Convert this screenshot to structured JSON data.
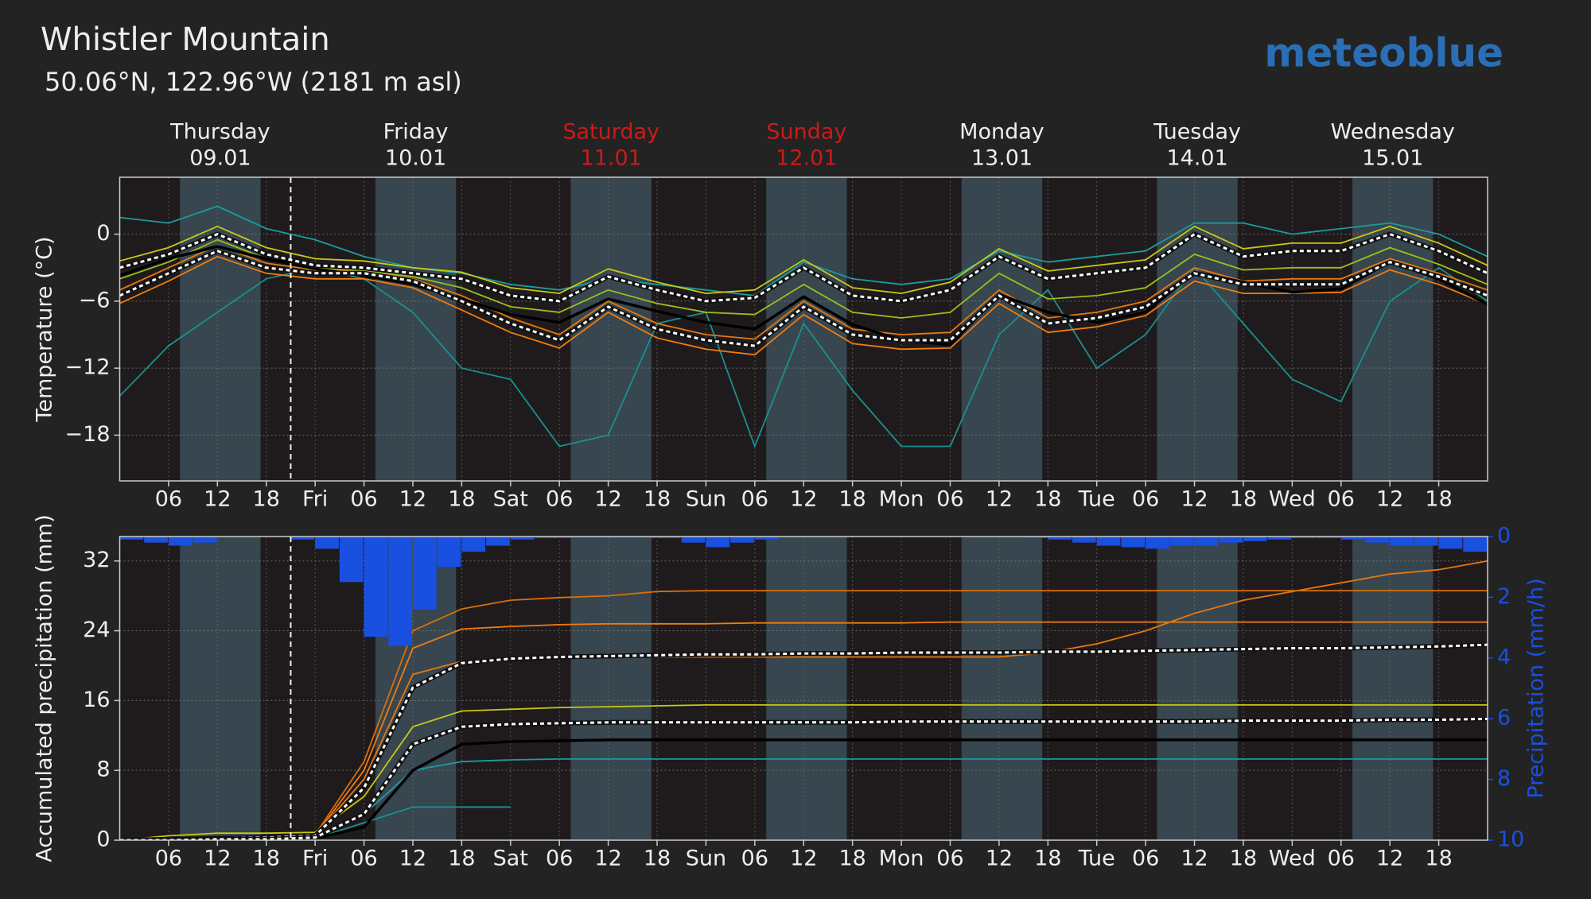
{
  "header": {
    "title": "Whistler Mountain",
    "subtitle": "50.06°N, 122.96°W (2181 m asl)",
    "logo": "meteoblue",
    "day_headers": [
      {
        "day": "Thursday",
        "date": "09.01",
        "color": "#eeeeee"
      },
      {
        "day": "Friday",
        "date": "10.01",
        "color": "#eeeeee"
      },
      {
        "day": "Saturday",
        "date": "11.01",
        "color": "#cc1a1a"
      },
      {
        "day": "Sunday",
        "date": "12.01",
        "color": "#cc1a1a"
      },
      {
        "day": "Monday",
        "date": "13.01",
        "color": "#eeeeee"
      },
      {
        "day": "Tuesday",
        "date": "14.01",
        "color": "#eeeeee"
      },
      {
        "day": "Wednesday",
        "date": "15.01",
        "color": "#eeeeee"
      }
    ]
  },
  "chart_data": [
    {
      "type": "line",
      "y_label": "Temperature (°C)",
      "grid": true,
      "now": 21,
      "xlim": [
        0,
        168
      ],
      "ylim": [
        -22.1,
        5.1
      ],
      "xticks": [
        {
          "value": 6,
          "label": "06"
        },
        {
          "value": 12,
          "label": "12"
        },
        {
          "value": 18,
          "label": "18"
        },
        {
          "value": 24,
          "label": "Fri"
        },
        {
          "value": 30,
          "label": "06"
        },
        {
          "value": 36,
          "label": "12"
        },
        {
          "value": 42,
          "label": "18"
        },
        {
          "value": 48,
          "label": "Sat"
        },
        {
          "value": 54,
          "label": "06"
        },
        {
          "value": 60,
          "label": "12"
        },
        {
          "value": 66,
          "label": "18"
        },
        {
          "value": 72,
          "label": "Sun"
        },
        {
          "value": 78,
          "label": "06"
        },
        {
          "value": 84,
          "label": "12"
        },
        {
          "value": 90,
          "label": "18"
        },
        {
          "value": 96,
          "label": "Mon"
        },
        {
          "value": 102,
          "label": "06"
        },
        {
          "value": 108,
          "label": "12"
        },
        {
          "value": 114,
          "label": "18"
        },
        {
          "value": 120,
          "label": "Tue"
        },
        {
          "value": 126,
          "label": "06"
        },
        {
          "value": 132,
          "label": "12"
        },
        {
          "value": 138,
          "label": "18"
        },
        {
          "value": 144,
          "label": "Wed"
        },
        {
          "value": 150,
          "label": "06"
        },
        {
          "value": 156,
          "label": "12"
        },
        {
          "value": 162,
          "label": "18"
        }
      ],
      "yticks": [
        0,
        {
          "value": -6,
          "label": "−6"
        },
        {
          "value": -12,
          "label": "−12"
        },
        {
          "value": -18,
          "label": "−18"
        }
      ],
      "daylight": [
        [
          7.4,
          17.3
        ],
        [
          31.4,
          41.3
        ],
        [
          55.4,
          65.3
        ],
        [
          79.4,
          89.3
        ],
        [
          103.4,
          113.3
        ],
        [
          127.4,
          137.3
        ],
        [
          151.4,
          161.3
        ]
      ],
      "x": [
        0,
        6,
        12,
        18,
        24,
        30,
        36,
        42,
        48,
        54,
        60,
        66,
        72,
        78,
        84,
        90,
        96,
        102,
        108,
        114,
        120,
        126,
        132,
        138,
        144,
        150,
        156,
        162,
        168
      ],
      "series": [
        {
          "color": "#1a9090",
          "values": [
            -14.5,
            -10,
            -7,
            -4,
            -3,
            -4,
            -7,
            -12,
            -13,
            -19,
            -18,
            -8,
            -7,
            -19,
            -8,
            -14,
            -19,
            -19,
            -9,
            -5,
            -12,
            -9,
            -3,
            -8,
            -13,
            -15,
            -6,
            -3,
            -6
          ]
        },
        {
          "color": "#1a9ca0",
          "values": [
            1.5,
            1.0,
            2.5,
            0.5,
            -0.5,
            -2.0,
            -3.0,
            -3.5,
            -4.5,
            -5.0,
            -4.0,
            -4.5,
            -5.0,
            -5.5,
            -2.5,
            -4.0,
            -4.5,
            -4.0,
            -1.5,
            -2.5,
            -2.0,
            -1.5,
            1.0,
            1.0,
            0.0,
            0.5,
            1.0,
            0.0,
            -2.0
          ]
        },
        {
          "color": "#f07c10",
          "values": [
            -6.2,
            -4.2,
            -2.0,
            -3.5,
            -4.0,
            -4.0,
            -4.8,
            -6.8,
            -8.8,
            -10.2,
            -7.0,
            -9.3,
            -10.3,
            -10.8,
            -7.2,
            -9.8,
            -10.3,
            -10.2,
            -6.2,
            -8.8,
            -8.3,
            -7.3,
            -4.2,
            -5.3,
            -5.3,
            -5.2,
            -3.2,
            -4.5,
            -6.3
          ]
        },
        {
          "color": "#e8780c",
          "values": [
            -5.0,
            -3.0,
            -1.0,
            -2.6,
            -3.2,
            -3.3,
            -4.0,
            -5.5,
            -7.5,
            -9.0,
            -6.0,
            -8.0,
            -9.0,
            -9.4,
            -6.0,
            -8.5,
            -9.0,
            -8.8,
            -5.0,
            -7.5,
            -7.0,
            -6.0,
            -3.0,
            -4.2,
            -4.0,
            -4.0,
            -2.2,
            -3.5,
            -5.0
          ]
        },
        {
          "color": "#c8c814",
          "values": [
            -2.4,
            -1.2,
            0.7,
            -1.2,
            -2.2,
            -2.4,
            -3.0,
            -3.4,
            -4.8,
            -5.3,
            -3.1,
            -4.3,
            -5.3,
            -5.0,
            -2.3,
            -4.8,
            -5.3,
            -4.3,
            -1.3,
            -3.3,
            -2.8,
            -2.3,
            0.7,
            -1.3,
            -0.8,
            -0.8,
            0.7,
            -0.8,
            -2.8
          ]
        },
        {
          "color": "#9cbf1c",
          "values": [
            -4.0,
            -2.5,
            -0.5,
            -2.2,
            -3.0,
            -3.3,
            -3.8,
            -4.8,
            -6.5,
            -7.0,
            -5.0,
            -6.2,
            -7.0,
            -7.2,
            -4.5,
            -7.0,
            -7.5,
            -7.0,
            -3.5,
            -5.8,
            -5.5,
            -4.8,
            -1.8,
            -3.2,
            -3.0,
            -3.0,
            -1.2,
            -2.7,
            -4.5
          ]
        },
        {
          "color": "#000000",
          "values": [
            -3.7,
            -2.2,
            -1.1,
            -2.2,
            -3.1,
            -3.7,
            -4.5,
            -5.8,
            -7.2,
            -7.9,
            -5.8,
            -6.9,
            -7.9,
            -8.5,
            -5.6,
            -8.1,
            -9.5,
            -9.9,
            -5.4,
            -7.0,
            -7.9,
            -7.0,
            -3.4,
            -4.3,
            -5.2,
            -4.9,
            -2.5,
            -4.0,
            -6.3
          ]
        },
        {
          "color": "#ffffff",
          "style": "dashed",
          "values": [
            -3.0,
            -1.8,
            0.0,
            -1.8,
            -2.8,
            -3.0,
            -3.5,
            -4.0,
            -5.5,
            -6.0,
            -3.8,
            -5.0,
            -6.0,
            -5.7,
            -3.0,
            -5.5,
            -6.0,
            -5.0,
            -2.0,
            -4.0,
            -3.5,
            -3.0,
            0.0,
            -2.0,
            -1.5,
            -1.5,
            0.0,
            -1.5,
            -3.5
          ]
        },
        {
          "color": "#ffffff",
          "style": "dashed",
          "values": [
            -5.5,
            -3.5,
            -1.5,
            -3.0,
            -3.5,
            -3.5,
            -4.2,
            -6.0,
            -8.0,
            -9.5,
            -6.5,
            -8.5,
            -9.5,
            -10.0,
            -6.5,
            -9.0,
            -9.5,
            -9.5,
            -5.5,
            -8.0,
            -7.5,
            -6.5,
            -3.5,
            -4.5,
            -4.5,
            -4.5,
            -2.5,
            -3.8,
            -5.5
          ]
        }
      ]
    },
    {
      "type": "line",
      "y_label": "Accumulated precipitation (mm)",
      "y2_label": "Precipitation (mm/h)",
      "y2_color": "#1a50e0",
      "grid": true,
      "now": 21,
      "xlim": [
        0,
        168
      ],
      "ylim": [
        0,
        34.8
      ],
      "y2lim": [
        10,
        0
      ],
      "xticks": [
        {
          "value": 6,
          "label": "06"
        },
        {
          "value": 12,
          "label": "12"
        },
        {
          "value": 18,
          "label": "18"
        },
        {
          "value": 24,
          "label": "Fri"
        },
        {
          "value": 30,
          "label": "06"
        },
        {
          "value": 36,
          "label": "12"
        },
        {
          "value": 42,
          "label": "18"
        },
        {
          "value": 48,
          "label": "Sat"
        },
        {
          "value": 54,
          "label": "06"
        },
        {
          "value": 60,
          "label": "12"
        },
        {
          "value": 66,
          "label": "18"
        },
        {
          "value": 72,
          "label": "Sun"
        },
        {
          "value": 78,
          "label": "06"
        },
        {
          "value": 84,
          "label": "12"
        },
        {
          "value": 90,
          "label": "18"
        },
        {
          "value": 96,
          "label": "Mon"
        },
        {
          "value": 102,
          "label": "06"
        },
        {
          "value": 108,
          "label": "12"
        },
        {
          "value": 114,
          "label": "18"
        },
        {
          "value": 120,
          "label": "Tue"
        },
        {
          "value": 126,
          "label": "06"
        },
        {
          "value": 132,
          "label": "12"
        },
        {
          "value": 138,
          "label": "18"
        },
        {
          "value": 144,
          "label": "Wed"
        },
        {
          "value": 150,
          "label": "06"
        },
        {
          "value": 156,
          "label": "12"
        },
        {
          "value": 162,
          "label": "18"
        }
      ],
      "yticks": [
        0,
        8,
        16,
        24,
        32
      ],
      "y2ticks": [
        0,
        2,
        4,
        6,
        8,
        10
      ],
      "daylight": [
        [
          7.4,
          17.3
        ],
        [
          31.4,
          41.3
        ],
        [
          55.4,
          65.3
        ],
        [
          79.4,
          89.3
        ],
        [
          103.4,
          113.3
        ],
        [
          127.4,
          137.3
        ],
        [
          151.4,
          161.3
        ]
      ],
      "x": [
        0,
        6,
        12,
        18,
        24,
        30,
        36,
        42,
        48,
        54,
        60,
        66,
        72,
        78,
        84,
        90,
        96,
        102,
        108,
        114,
        120,
        126,
        132,
        138,
        144,
        150,
        156,
        162,
        168
      ],
      "series": [
        {
          "color": "#1a9090",
          "values": [
            0,
            0,
            0,
            0,
            0.2,
            2,
            3.8,
            3.8,
            3.8,
            null,
            null,
            null,
            null,
            null,
            null,
            null,
            null,
            null,
            null,
            null,
            null,
            null,
            null,
            null,
            null,
            null,
            null,
            null,
            null
          ]
        },
        {
          "color": "#1a9ca0",
          "values": [
            0,
            0,
            0,
            0,
            0.3,
            3,
            8,
            9,
            9.2,
            9.3,
            9.3,
            9.3,
            9.3,
            9.3,
            9.3,
            9.3,
            9.3,
            9.3,
            9.3,
            9.3,
            9.3,
            9.3,
            9.3,
            9.3,
            9.3,
            9.3,
            9.3,
            9.3,
            9.3
          ]
        },
        {
          "color": "#c8c814",
          "values": [
            0,
            0.5,
            0.8,
            0.8,
            0.9,
            5,
            13,
            14.8,
            15,
            15.2,
            15.3,
            15.4,
            15.5,
            15.5,
            15.5,
            15.5,
            15.5,
            15.5,
            15.5,
            15.5,
            15.5,
            15.5,
            15.5,
            15.5,
            15.5,
            15.5,
            15.5,
            15.5,
            15.5
          ]
        },
        {
          "color": "#f07c10",
          "values": [
            0,
            0,
            0.2,
            0.3,
            0.5,
            8,
            22,
            24.2,
            24.5,
            24.7,
            24.8,
            24.8,
            24.8,
            24.9,
            24.9,
            24.9,
            24.9,
            25,
            25,
            25,
            25,
            25,
            25,
            25,
            25,
            25,
            25,
            25,
            25
          ]
        },
        {
          "color": "#e8780c",
          "values": [
            0,
            0,
            0.1,
            0.2,
            0.5,
            7,
            19,
            20.5,
            20.8,
            21,
            21,
            21,
            21,
            21,
            21,
            21,
            21,
            21,
            21,
            21.5,
            22.5,
            24,
            26,
            27.5,
            28.5,
            29.5,
            30.5,
            31,
            32
          ]
        },
        {
          "color": "#d9700c",
          "values": [
            0,
            0,
            0.1,
            0.2,
            0.6,
            9,
            24,
            26.5,
            27.5,
            27.8,
            28,
            28.5,
            28.6,
            28.6,
            28.6,
            28.6,
            28.6,
            28.6,
            28.6,
            28.6,
            28.6,
            28.6,
            28.6,
            28.6,
            28.6,
            28.6,
            28.6,
            28.6,
            28.6
          ]
        },
        {
          "color": "#000000",
          "values": [
            0,
            0,
            0,
            0,
            0.2,
            1.5,
            8,
            11,
            11.3,
            11.4,
            11.5,
            11.5,
            11.5,
            11.5,
            11.5,
            11.5,
            11.5,
            11.5,
            11.5,
            11.5,
            11.5,
            11.5,
            11.5,
            11.5,
            11.5,
            11.5,
            11.5,
            11.5,
            11.5
          ]
        },
        {
          "color": "#ffffff",
          "style": "dashed",
          "values": [
            0,
            0.1,
            0.2,
            0.3,
            0.5,
            6,
            17.5,
            20.3,
            20.8,
            21,
            21.1,
            21.2,
            21.3,
            21.3,
            21.4,
            21.4,
            21.5,
            21.5,
            21.5,
            21.6,
            21.6,
            21.7,
            21.8,
            21.9,
            22,
            22,
            22.1,
            22.2,
            22.4
          ]
        },
        {
          "color": "#ffffff",
          "style": "dashed",
          "values": [
            0,
            0,
            0.1,
            0.1,
            0.3,
            3,
            11,
            13,
            13.3,
            13.4,
            13.5,
            13.5,
            13.5,
            13.5,
            13.5,
            13.5,
            13.6,
            13.6,
            13.6,
            13.6,
            13.6,
            13.6,
            13.6,
            13.7,
            13.7,
            13.7,
            13.8,
            13.8,
            13.9
          ]
        },
        {
          "type": "bar",
          "axis": "y2",
          "width": 3,
          "color": "#1a50e0",
          "x": [
            0,
            3,
            6,
            9,
            12,
            15,
            18,
            21,
            24,
            27,
            30,
            33,
            36,
            39,
            42,
            45,
            48,
            51,
            54,
            57,
            60,
            63,
            66,
            69,
            72,
            75,
            78,
            81,
            84,
            87,
            90,
            93,
            96,
            99,
            102,
            105,
            108,
            111,
            114,
            117,
            120,
            123,
            126,
            129,
            132,
            135,
            138,
            141,
            144,
            147,
            150,
            153,
            156,
            159,
            162,
            165
          ],
          "values": [
            0.1,
            0.2,
            0.3,
            0.2,
            0,
            0,
            0,
            0.1,
            0.4,
            1.5,
            3.3,
            3.6,
            2.4,
            1.0,
            0.5,
            0.3,
            0.1,
            0.05,
            0.05,
            0.05,
            0.05,
            0.05,
            0.05,
            0.2,
            0.35,
            0.2,
            0.1,
            0,
            0,
            0,
            0,
            0,
            0,
            0,
            0,
            0,
            0,
            0.05,
            0.1,
            0.2,
            0.3,
            0.35,
            0.4,
            0.3,
            0.3,
            0.2,
            0.15,
            0.1,
            0.05,
            0.05,
            0.1,
            0.2,
            0.3,
            0.3,
            0.4,
            0.5
          ]
        }
      ]
    }
  ]
}
